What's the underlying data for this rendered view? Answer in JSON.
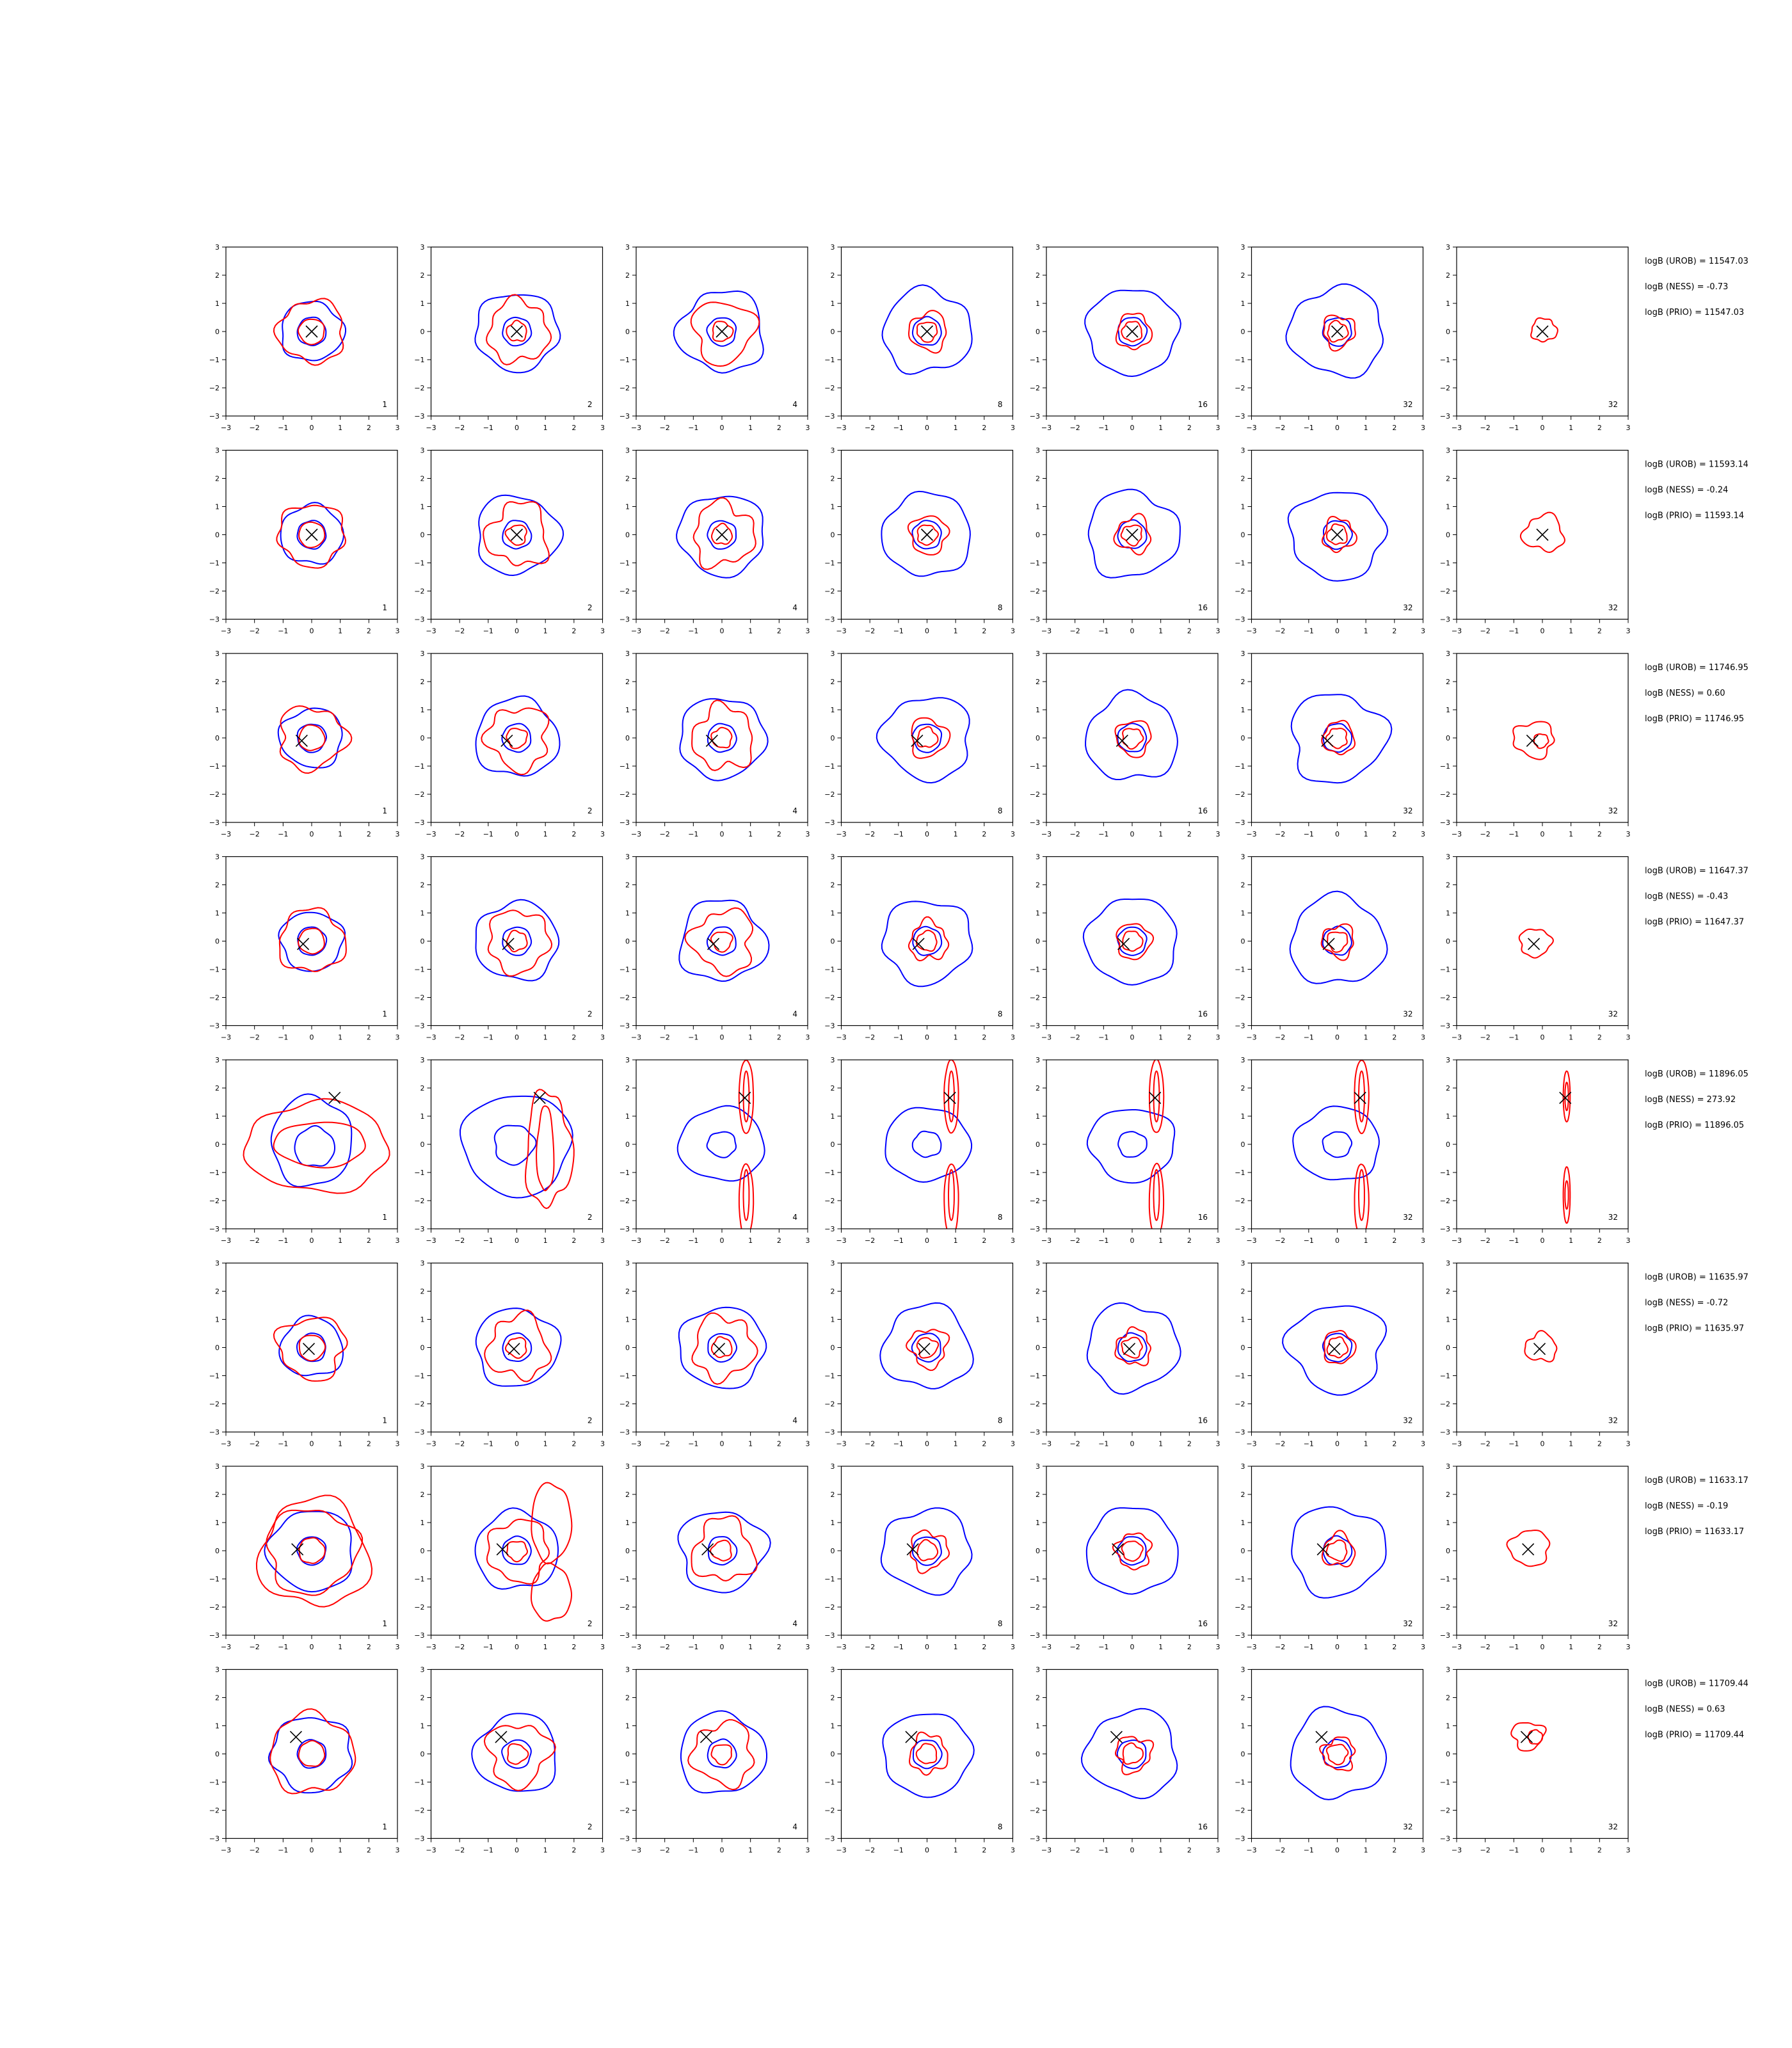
{
  "chart_data": {
    "type": "contour-grid",
    "title": "",
    "rows": 8,
    "cols": 7,
    "xlim": [
      -3,
      3
    ],
    "ylim": [
      -3,
      3
    ],
    "ticks": [
      "−3",
      "−2",
      "−1",
      "0",
      "1",
      "2",
      "3"
    ],
    "tick_values": [
      -3,
      -2,
      -1,
      0,
      1,
      2,
      3
    ],
    "column_labels": [
      "1",
      "2",
      "4",
      "8",
      "16",
      "32",
      "32"
    ],
    "colors": {
      "blue": "#0000ff",
      "red": "#ff0000",
      "marker": "#000000"
    },
    "rows_data": [
      {
        "marker": [
          0.0,
          0.0
        ],
        "stats": [
          "logB (UROB) = 11547.03",
          "logB (NESS) = -0.73",
          "logB (PRIO) = 11547.03"
        ]
      },
      {
        "marker": [
          0.0,
          0.0
        ],
        "stats": [
          "logB (UROB) = 11593.14",
          "logB (NESS) = -0.24",
          "logB (PRIO) = 11593.14"
        ]
      },
      {
        "marker": [
          -0.35,
          -0.1
        ],
        "stats": [
          "logB (UROB) = 11746.95",
          "logB (NESS) = 0.60",
          "logB (PRIO) = 11746.95"
        ]
      },
      {
        "marker": [
          -0.3,
          -0.1
        ],
        "stats": [
          "logB (UROB) = 11647.37",
          "logB (NESS) = -0.43",
          "logB (PRIO) = 11647.37"
        ]
      },
      {
        "marker": [
          0.8,
          1.65
        ],
        "stats": [
          "logB (UROB) = 11896.05",
          "logB (NESS) = 273.92",
          "logB (PRIO) = 11896.05"
        ]
      },
      {
        "marker": [
          -0.1,
          -0.05
        ],
        "stats": [
          "logB (UROB) = 11635.97",
          "logB (NESS) = -0.72",
          "logB (PRIO) = 11635.97"
        ]
      },
      {
        "marker": [
          -0.5,
          0.05
        ],
        "stats": [
          "logB (UROB) = 11633.17",
          "logB (NESS) = -0.19",
          "logB (PRIO) = 11633.17"
        ]
      },
      {
        "marker": [
          -0.55,
          0.6
        ],
        "stats": [
          "logB (UROB) = 11709.44",
          "logB (NESS) = 0.63",
          "logB (PRIO) = 11709.44"
        ]
      }
    ]
  }
}
